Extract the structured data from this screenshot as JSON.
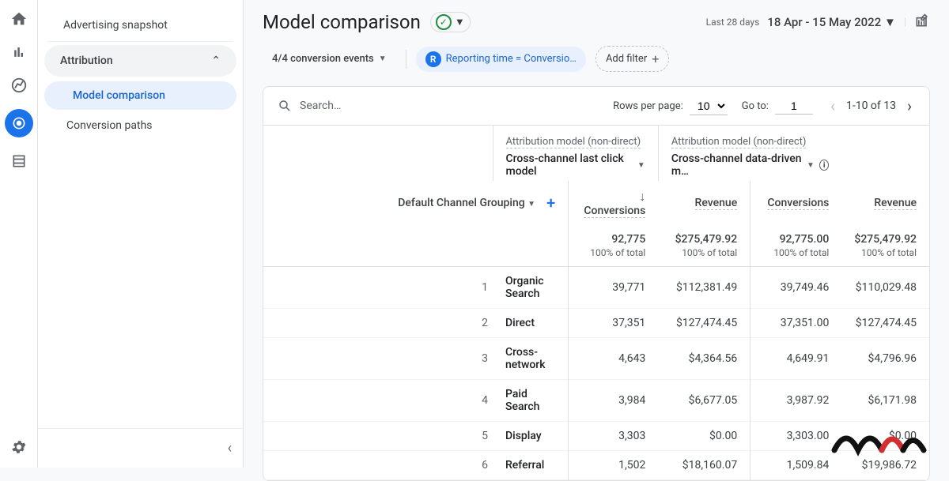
{
  "sidenav": {
    "items": [
      "Advertising snapshot"
    ],
    "section": "Attribution",
    "subs": [
      "Model comparison",
      "Conversion paths"
    ]
  },
  "header": {
    "title": "Model comparison",
    "period_label": "Last 28 days",
    "date_range": "18 Apr - 15 May 2022"
  },
  "filters": {
    "conversion_events": "4/4 conversion events",
    "reporting_badge": "R",
    "reporting_label": "Reporting time = Conversio…",
    "add_filter": "Add filter"
  },
  "table": {
    "search_placeholder": "Search…",
    "rows_per_page_label": "Rows per page:",
    "rows_per_page": "10",
    "go_to_label": "Go to:",
    "go_to": "1",
    "range": "1-10 of 13",
    "attr_label": "Attribution model (non-direct)",
    "model_a": "Cross-channel last click model",
    "model_b": "Cross-channel data-driven m…",
    "dim_header": "Default Channel Grouping",
    "metric1": "Conversions",
    "metric2": "Revenue",
    "totals": {
      "conv_a": "92,775",
      "rev_a": "$275,479.92",
      "conv_b": "92,775.00",
      "rev_b": "$275,479.92",
      "pct": "100% of total"
    },
    "rows": [
      {
        "idx": "1",
        "name": "Organic Search",
        "ca": "39,771",
        "ra": "$112,381.49",
        "cb": "39,749.46",
        "rb": "$110,029.48"
      },
      {
        "idx": "2",
        "name": "Direct",
        "ca": "37,351",
        "ra": "$127,474.45",
        "cb": "37,351.00",
        "rb": "$127,474.45"
      },
      {
        "idx": "3",
        "name": "Cross-network",
        "ca": "4,643",
        "ra": "$4,364.56",
        "cb": "4,649.91",
        "rb": "$4,796.96"
      },
      {
        "idx": "4",
        "name": "Paid Search",
        "ca": "3,984",
        "ra": "$6,677.05",
        "cb": "3,987.92",
        "rb": "$6,171.98"
      },
      {
        "idx": "5",
        "name": "Display",
        "ca": "3,303",
        "ra": "$0.00",
        "cb": "3,303.00",
        "rb": "$0.00"
      },
      {
        "idx": "6",
        "name": "Referral",
        "ca": "1,502",
        "ra": "$18,160.07",
        "cb": "1,509.84",
        "rb": "$19,986.72"
      }
    ]
  }
}
